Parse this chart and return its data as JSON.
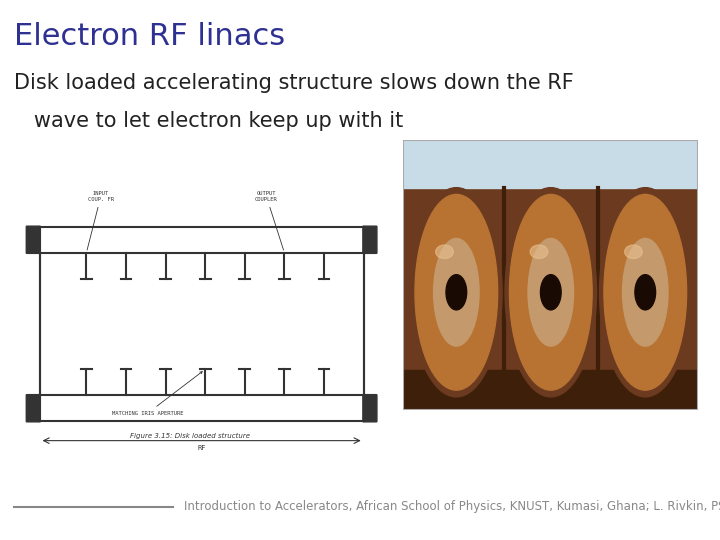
{
  "title": "Electron RF linacs",
  "title_color": "#2e3192",
  "title_fontsize": 22,
  "subtitle_line1": "Disk loaded accelerating structure slows down the RF",
  "subtitle_line2": "   wave to let electron keep up with it",
  "subtitle_fontsize": 15,
  "subtitle_color": "#222222",
  "footer_text": "Introduction to Accelerators, African School of Physics, KNUST, Kumasi, Ghana; L. Rivkin, PSI & EPFL",
  "footer_fontsize": 8.5,
  "footer_color": "#888888",
  "line_color": "#888888",
  "bg_color": "#ffffff"
}
